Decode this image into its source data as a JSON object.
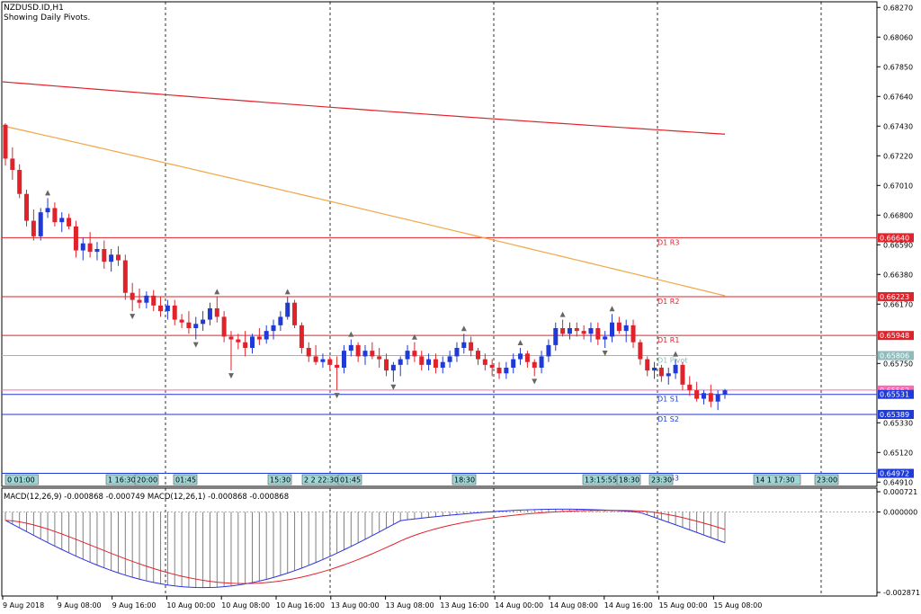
{
  "window": {
    "symbol": "NZDUSD.ID,H1",
    "subtitle": "Showing Daily Pivots."
  },
  "colors": {
    "bull": "#1f3ad6",
    "bear": "#e0222a",
    "ma_red": "#e0222a",
    "ma_orange": "#f2a544",
    "pivot_red": "#e0222a",
    "pivot_blue": "#1f3ad6",
    "pivot_teal": "#8fbcbb",
    "macd_line": "#2b32e0",
    "signal_line": "#e0222a",
    "histogram": "#808080"
  },
  "price_axis": {
    "ticks": [
      "0.68270",
      "0.68060",
      "0.67850",
      "0.67640",
      "0.67430",
      "0.67220",
      "0.67010",
      "0.66800",
      "0.66590",
      "0.66380",
      "0.66170",
      "0.65750",
      "0.65330",
      "0.65120",
      "0.64910"
    ],
    "ymin": 0.6488,
    "ymax": 0.6831
  },
  "pivots": [
    {
      "name": "D1 R3",
      "value": 0.6664,
      "label": "0.66640",
      "color": "#e0222a"
    },
    {
      "name": "D1 R2",
      "value": 0.66223,
      "label": "0.66223",
      "color": "#e0222a"
    },
    {
      "name": "D1 R1",
      "value": 0.65948,
      "label": "0.65948",
      "color": "#e0222a"
    },
    {
      "name": "D1 Pivot",
      "value": 0.65806,
      "label": "0.65806",
      "color": "#8fbcbb"
    },
    {
      "name": "",
      "value": 0.65562,
      "label": "0.65562",
      "color": "#ff69b4"
    },
    {
      "name": "D1 S1",
      "value": 0.65531,
      "label": "0.65531",
      "color": "#1f3ad6"
    },
    {
      "name": "D1 S2",
      "value": 0.65389,
      "label": "0.65389",
      "color": "#1f3ad6"
    },
    {
      "name": "D1 S3",
      "value": 0.64972,
      "label": "0.64972",
      "color": "#1f3ad6"
    }
  ],
  "time_markers": [
    "0 01:00",
    "1 16:30",
    "20:00",
    "01:45",
    "15:30",
    "2 2 22:30",
    "01:45",
    "18:30",
    "13:15:55",
    "18:30",
    "23:30",
    "14 1 17:30",
    "23:00"
  ],
  "macd": {
    "label": "MACD(12,26,9) -0.000868 -0.000749 MACD(12,26,1) -0.000868 -0.000868",
    "ticks": [
      "0.000721",
      "0.000000",
      "-0.002871"
    ],
    "zero_level": "0.000000"
  },
  "x_axis": {
    "labels": [
      "9 Aug 2018",
      "9 Aug 08:00",
      "9 Aug 16:00",
      "10 Aug 00:00",
      "10 Aug 08:00",
      "10 Aug 16:00",
      "13 Aug 00:00",
      "13 Aug 08:00",
      "13 Aug 16:00",
      "14 Aug 00:00",
      "14 Aug 08:00",
      "14 Aug 16:00",
      "15 Aug 00:00",
      "15 Aug 08:00"
    ]
  },
  "chart_data": {
    "type": "candlestick",
    "title": "NZDUSD.ID,H1",
    "candles": [
      [
        0.6744,
        0.6745,
        0.6715,
        0.672
      ],
      [
        0.672,
        0.6728,
        0.6705,
        0.6712
      ],
      [
        0.6712,
        0.6716,
        0.6692,
        0.6695
      ],
      [
        0.6695,
        0.6698,
        0.6672,
        0.6676
      ],
      [
        0.6676,
        0.6684,
        0.6662,
        0.6665
      ],
      [
        0.6665,
        0.6685,
        0.6662,
        0.6682
      ],
      [
        0.6682,
        0.6692,
        0.6678,
        0.6685
      ],
      [
        0.6685,
        0.6689,
        0.6672,
        0.6675
      ],
      [
        0.6675,
        0.6682,
        0.6668,
        0.6678
      ],
      [
        0.6678,
        0.6681,
        0.667,
        0.6672
      ],
      [
        0.6672,
        0.6676,
        0.665,
        0.6655
      ],
      [
        0.6655,
        0.6664,
        0.6648,
        0.666
      ],
      [
        0.666,
        0.6668,
        0.665,
        0.6654
      ],
      [
        0.6654,
        0.6661,
        0.6648,
        0.6656
      ],
      [
        0.6656,
        0.6662,
        0.6642,
        0.6647
      ],
      [
        0.6647,
        0.6656,
        0.664,
        0.6652
      ],
      [
        0.6652,
        0.6658,
        0.6644,
        0.6648
      ],
      [
        0.6648,
        0.6652,
        0.662,
        0.6625
      ],
      [
        0.6625,
        0.6632,
        0.6612,
        0.662
      ],
      [
        0.662,
        0.6628,
        0.6614,
        0.6618
      ],
      [
        0.6618,
        0.6626,
        0.6614,
        0.6623
      ],
      [
        0.6623,
        0.6627,
        0.6612,
        0.6616
      ],
      [
        0.6616,
        0.6622,
        0.6608,
        0.6612
      ],
      [
        0.6612,
        0.662,
        0.6606,
        0.6616
      ],
      [
        0.6616,
        0.662,
        0.6602,
        0.6606
      ],
      [
        0.6606,
        0.661,
        0.66,
        0.6604
      ],
      [
        0.6604,
        0.6612,
        0.6596,
        0.66
      ],
      [
        0.66,
        0.6608,
        0.6592,
        0.6603
      ],
      [
        0.6603,
        0.6612,
        0.6598,
        0.6606
      ],
      [
        0.6606,
        0.6618,
        0.6602,
        0.6614
      ],
      [
        0.6614,
        0.6622,
        0.6604,
        0.6608
      ],
      [
        0.6608,
        0.6612,
        0.659,
        0.6594
      ],
      [
        0.6594,
        0.6598,
        0.657,
        0.6592
      ],
      [
        0.6592,
        0.6596,
        0.6585,
        0.659
      ],
      [
        0.659,
        0.6598,
        0.658,
        0.6586
      ],
      [
        0.6586,
        0.6596,
        0.6582,
        0.6594
      ],
      [
        0.6594,
        0.66,
        0.6588,
        0.6592
      ],
      [
        0.6592,
        0.6602,
        0.6589,
        0.6598
      ],
      [
        0.6598,
        0.6606,
        0.6592,
        0.6602
      ],
      [
        0.6602,
        0.6612,
        0.6598,
        0.6608
      ],
      [
        0.6608,
        0.6622,
        0.6606,
        0.6618
      ],
      [
        0.6618,
        0.662,
        0.66,
        0.6602
      ],
      [
        0.6602,
        0.6604,
        0.6582,
        0.6586
      ],
      [
        0.6586,
        0.659,
        0.6576,
        0.658
      ],
      [
        0.658,
        0.6588,
        0.6574,
        0.6576
      ],
      [
        0.6576,
        0.6582,
        0.6572,
        0.6578
      ],
      [
        0.6578,
        0.658,
        0.657,
        0.6574
      ],
      [
        0.6574,
        0.658,
        0.6556,
        0.6572
      ],
      [
        0.6572,
        0.6588,
        0.6568,
        0.6584
      ],
      [
        0.6584,
        0.6592,
        0.658,
        0.6588
      ],
      [
        0.6588,
        0.659,
        0.6576,
        0.658
      ],
      [
        0.658,
        0.6588,
        0.6574,
        0.6584
      ],
      [
        0.6584,
        0.659,
        0.6578,
        0.658
      ],
      [
        0.658,
        0.6586,
        0.6572,
        0.6578
      ],
      [
        0.6578,
        0.6582,
        0.6566,
        0.657
      ],
      [
        0.657,
        0.6576,
        0.6562,
        0.6574
      ],
      [
        0.6574,
        0.658,
        0.6566,
        0.6578
      ],
      [
        0.6578,
        0.6588,
        0.6574,
        0.6584
      ],
      [
        0.6584,
        0.659,
        0.6576,
        0.658
      ],
      [
        0.658,
        0.6584,
        0.657,
        0.6574
      ],
      [
        0.6574,
        0.6582,
        0.657,
        0.6578
      ],
      [
        0.6578,
        0.6582,
        0.6568,
        0.6572
      ],
      [
        0.6572,
        0.658,
        0.6568,
        0.6576
      ],
      [
        0.6576,
        0.6584,
        0.6572,
        0.658
      ],
      [
        0.658,
        0.659,
        0.6576,
        0.6586
      ],
      [
        0.6586,
        0.6596,
        0.6582,
        0.659
      ],
      [
        0.659,
        0.6594,
        0.658,
        0.6584
      ],
      [
        0.6584,
        0.6586,
        0.6574,
        0.6578
      ],
      [
        0.6578,
        0.6582,
        0.657,
        0.6574
      ],
      [
        0.6574,
        0.6578,
        0.6566,
        0.6572
      ],
      [
        0.6572,
        0.6576,
        0.6564,
        0.6568
      ],
      [
        0.6568,
        0.6576,
        0.6564,
        0.6572
      ],
      [
        0.6572,
        0.6582,
        0.6568,
        0.6578
      ],
      [
        0.6578,
        0.6586,
        0.6574,
        0.6582
      ],
      [
        0.6582,
        0.6584,
        0.6572,
        0.6576
      ],
      [
        0.6576,
        0.6578,
        0.6566,
        0.6572
      ],
      [
        0.6572,
        0.6584,
        0.6568,
        0.658
      ],
      [
        0.658,
        0.6592,
        0.6576,
        0.6588
      ],
      [
        0.6588,
        0.6604,
        0.6584,
        0.66
      ],
      [
        0.66,
        0.6606,
        0.6594,
        0.6596
      ],
      [
        0.6596,
        0.6604,
        0.6592,
        0.66
      ],
      [
        0.66,
        0.6604,
        0.6594,
        0.6598
      ],
      [
        0.6598,
        0.6602,
        0.6592,
        0.6596
      ],
      [
        0.6596,
        0.6604,
        0.659,
        0.66
      ],
      [
        0.66,
        0.6604,
        0.6588,
        0.6592
      ],
      [
        0.6592,
        0.6598,
        0.6586,
        0.6594
      ],
      [
        0.6594,
        0.661,
        0.659,
        0.6604
      ],
      [
        0.6604,
        0.6608,
        0.6596,
        0.6598
      ],
      [
        0.6598,
        0.6606,
        0.659,
        0.6602
      ],
      [
        0.6602,
        0.6606,
        0.6586,
        0.659
      ],
      [
        0.659,
        0.6592,
        0.6574,
        0.6578
      ],
      [
        0.6578,
        0.658,
        0.6566,
        0.657
      ],
      [
        0.657,
        0.6576,
        0.6564,
        0.6572
      ],
      [
        0.6572,
        0.6574,
        0.6562,
        0.6566
      ],
      [
        0.6566,
        0.6572,
        0.656,
        0.6568
      ],
      [
        0.6568,
        0.6578,
        0.6564,
        0.6574
      ],
      [
        0.6574,
        0.6576,
        0.6556,
        0.656
      ],
      [
        0.656,
        0.6566,
        0.6552,
        0.6556
      ],
      [
        0.6556,
        0.6562,
        0.6548,
        0.655
      ],
      [
        0.655,
        0.6556,
        0.6546,
        0.6554
      ],
      [
        0.6554,
        0.656,
        0.6544,
        0.6548
      ],
      [
        0.6548,
        0.6556,
        0.6542,
        0.6553
      ],
      [
        0.6553,
        0.6557,
        0.655,
        0.6556
      ]
    ],
    "ma_series": [
      {
        "values_start": 0.6773,
        "values_end": 0.6741
      },
      {
        "values_start": 0.6741,
        "values_end": 0.6616
      }
    ],
    "macd_hist_range": [
      -0.002871,
      0.000721
    ]
  }
}
